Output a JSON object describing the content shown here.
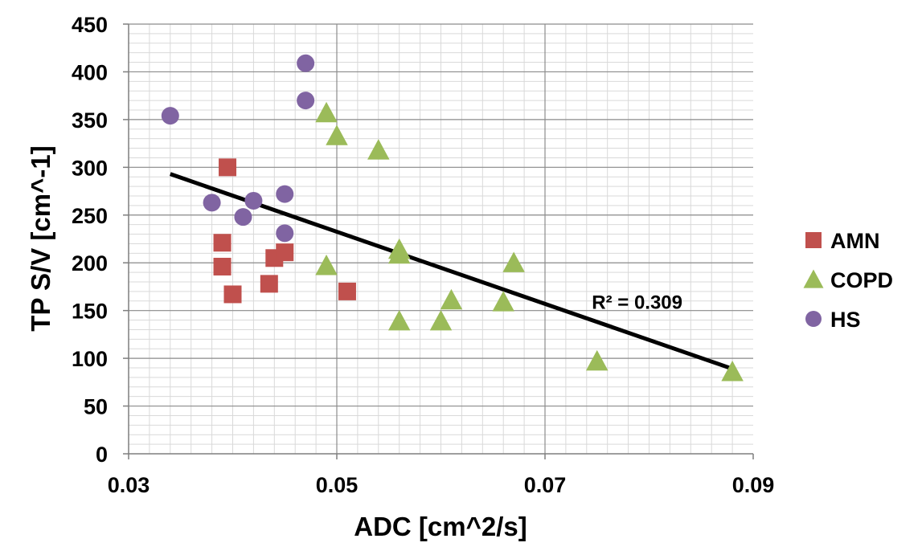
{
  "chart_data": {
    "type": "scatter",
    "title": "",
    "xlabel": "ADC [cm^2/s]",
    "ylabel": "TP S/V [cm^-1]",
    "xlim": [
      0.03,
      0.09
    ],
    "ylim": [
      0,
      450
    ],
    "x_major_step": 0.02,
    "x_minor_step": 0.002,
    "y_major_step": 50,
    "y_minor_step": 10,
    "x_tick_labels": [
      "0.03",
      "0.05",
      "0.07",
      "0.09"
    ],
    "y_tick_labels": [
      "0",
      "50",
      "100",
      "150",
      "200",
      "250",
      "300",
      "350",
      "400",
      "450"
    ],
    "grid": true,
    "legend_position": "right",
    "series": [
      {
        "name": "AMN",
        "marker": "square",
        "color": "#c0504d",
        "points": [
          {
            "x": 0.0395,
            "y": 300
          },
          {
            "x": 0.039,
            "y": 221
          },
          {
            "x": 0.039,
            "y": 196
          },
          {
            "x": 0.04,
            "y": 167
          },
          {
            "x": 0.0435,
            "y": 178
          },
          {
            "x": 0.044,
            "y": 205
          },
          {
            "x": 0.045,
            "y": 211
          },
          {
            "x": 0.051,
            "y": 170
          }
        ]
      },
      {
        "name": "COPD",
        "marker": "triangle",
        "color": "#9bbb59",
        "points": [
          {
            "x": 0.049,
            "y": 357
          },
          {
            "x": 0.05,
            "y": 333
          },
          {
            "x": 0.054,
            "y": 318
          },
          {
            "x": 0.049,
            "y": 197
          },
          {
            "x": 0.056,
            "y": 214
          },
          {
            "x": 0.056,
            "y": 209
          },
          {
            "x": 0.056,
            "y": 139
          },
          {
            "x": 0.06,
            "y": 139
          },
          {
            "x": 0.061,
            "y": 161
          },
          {
            "x": 0.066,
            "y": 159
          },
          {
            "x": 0.067,
            "y": 200
          },
          {
            "x": 0.075,
            "y": 97
          },
          {
            "x": 0.088,
            "y": 86
          }
        ]
      },
      {
        "name": "HS",
        "marker": "circle",
        "color": "#8064a2",
        "points": [
          {
            "x": 0.034,
            "y": 354
          },
          {
            "x": 0.038,
            "y": 263
          },
          {
            "x": 0.041,
            "y": 248
          },
          {
            "x": 0.042,
            "y": 265
          },
          {
            "x": 0.045,
            "y": 272
          },
          {
            "x": 0.045,
            "y": 231
          },
          {
            "x": 0.047,
            "y": 409
          },
          {
            "x": 0.047,
            "y": 370
          }
        ]
      }
    ],
    "trendline": {
      "type": "linear",
      "color": "#000000",
      "x": [
        0.034,
        0.088
      ],
      "y": [
        293,
        89
      ],
      "label": "R² = 0.309",
      "label_anchor": {
        "x": 0.0745,
        "y": 152
      }
    }
  }
}
